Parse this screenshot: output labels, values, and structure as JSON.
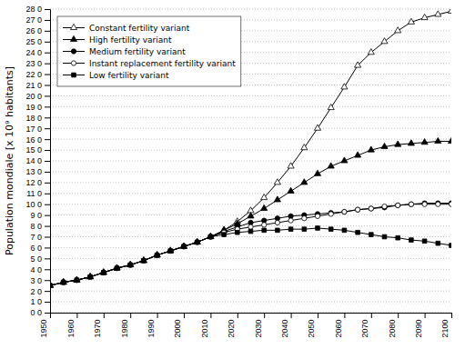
{
  "chart_data": {
    "type": "line",
    "y_label": "Population mondiale [x 10⁹ habitants]",
    "x": [
      1950,
      1955,
      1960,
      1965,
      1970,
      1975,
      1980,
      1985,
      1990,
      1995,
      2000,
      2005,
      2010,
      2015,
      2020,
      2025,
      2030,
      2035,
      2040,
      2045,
      2050,
      2055,
      2060,
      2065,
      2070,
      2075,
      2080,
      2085,
      2090,
      2095,
      2100
    ],
    "xlim": [
      1950,
      2100
    ],
    "xticks": [
      1950,
      1960,
      1970,
      1980,
      1990,
      2000,
      2010,
      2020,
      2030,
      2040,
      2050,
      2060,
      2070,
      2080,
      2090,
      2100
    ],
    "ylim": [
      0.0,
      28.0
    ],
    "yticks": [
      {
        "value": 0.0,
        "label": "0 0"
      },
      {
        "value": 1.0,
        "label": "1 0"
      },
      {
        "value": 2.0,
        "label": "2 0"
      },
      {
        "value": 3.0,
        "label": "3 0"
      },
      {
        "value": 4.0,
        "label": "4 0"
      },
      {
        "value": 5.0,
        "label": "5 0"
      },
      {
        "value": 6.0,
        "label": "6 0"
      },
      {
        "value": 7.0,
        "label": "7 0"
      },
      {
        "value": 8.0,
        "label": "8 0"
      },
      {
        "value": 9.0,
        "label": "9 0"
      },
      {
        "value": 10.0,
        "label": "10 0"
      },
      {
        "value": 11.0,
        "label": "11 0"
      },
      {
        "value": 12.0,
        "label": "12 0"
      },
      {
        "value": 13.0,
        "label": "13 0"
      },
      {
        "value": 14.0,
        "label": "14 0"
      },
      {
        "value": 15.0,
        "label": "15 0"
      },
      {
        "value": 16.0,
        "label": "16 0"
      },
      {
        "value": 17.0,
        "label": "17 0"
      },
      {
        "value": 18.0,
        "label": "18 0"
      },
      {
        "value": 19.0,
        "label": "19 0"
      },
      {
        "value": 20.0,
        "label": "20 0"
      },
      {
        "value": 21.0,
        "label": "21 0"
      },
      {
        "value": 22.0,
        "label": "22 0"
      },
      {
        "value": 23.0,
        "label": "23 0"
      },
      {
        "value": 24.0,
        "label": "24 0"
      },
      {
        "value": 25.0,
        "label": "25 0"
      },
      {
        "value": 26.0,
        "label": "26 0"
      },
      {
        "value": 27.0,
        "label": "27 0"
      },
      {
        "value": 28.0,
        "label": "28 0"
      }
    ],
    "grid": true,
    "legend": "upper left",
    "series": [
      {
        "name": "Constant fertility variant",
        "color": "black",
        "marker": "triangle-open",
        "values": [
          2.5,
          2.8,
          3.0,
          3.3,
          3.7,
          4.1,
          4.4,
          4.8,
          5.3,
          5.7,
          6.1,
          6.5,
          7.0,
          7.6,
          8.4,
          9.4,
          10.6,
          12.0,
          13.5,
          15.2,
          17.0,
          18.9,
          20.8,
          22.8,
          24.0,
          25.0,
          26.0,
          26.8,
          27.2,
          27.5,
          27.8
        ]
      },
      {
        "name": "High fertility variant",
        "color": "black",
        "marker": "triangle",
        "values": [
          2.5,
          2.8,
          3.0,
          3.3,
          3.7,
          4.1,
          4.4,
          4.8,
          5.3,
          5.7,
          6.1,
          6.5,
          7.0,
          7.6,
          8.2,
          8.9,
          9.6,
          10.4,
          11.2,
          12.0,
          12.8,
          13.5,
          14.0,
          14.5,
          15.0,
          15.3,
          15.5,
          15.6,
          15.7,
          15.8,
          15.8
        ]
      },
      {
        "name": "Medium fertility variant",
        "color": "black",
        "marker": "circle",
        "values": [
          2.5,
          2.8,
          3.0,
          3.3,
          3.7,
          4.1,
          4.4,
          4.8,
          5.3,
          5.7,
          6.1,
          6.5,
          7.0,
          7.5,
          7.9,
          8.3,
          8.5,
          8.7,
          8.9,
          9.0,
          9.1,
          9.2,
          9.3,
          9.5,
          9.6,
          9.7,
          9.9,
          10.0,
          10.1,
          10.1,
          10.1
        ]
      },
      {
        "name": "Instant replacement fertility variant",
        "color": "black",
        "marker": "circle-open",
        "values": [
          2.5,
          2.8,
          3.0,
          3.3,
          3.7,
          4.1,
          4.4,
          4.8,
          5.3,
          5.7,
          6.1,
          6.5,
          7.0,
          7.4,
          7.7,
          7.9,
          8.1,
          8.3,
          8.5,
          8.7,
          8.9,
          9.1,
          9.3,
          9.5,
          9.6,
          9.8,
          9.9,
          10.0,
          10.0,
          10.0,
          10.0
        ]
      },
      {
        "name": "Low fertility variant",
        "color": "black",
        "marker": "square",
        "values": [
          2.5,
          2.8,
          3.0,
          3.3,
          3.7,
          4.1,
          4.4,
          4.8,
          5.3,
          5.7,
          6.1,
          6.5,
          7.0,
          7.2,
          7.4,
          7.5,
          7.6,
          7.6,
          7.7,
          7.7,
          7.8,
          7.7,
          7.6,
          7.4,
          7.2,
          7.0,
          6.9,
          6.7,
          6.6,
          6.4,
          6.2
        ]
      }
    ]
  }
}
